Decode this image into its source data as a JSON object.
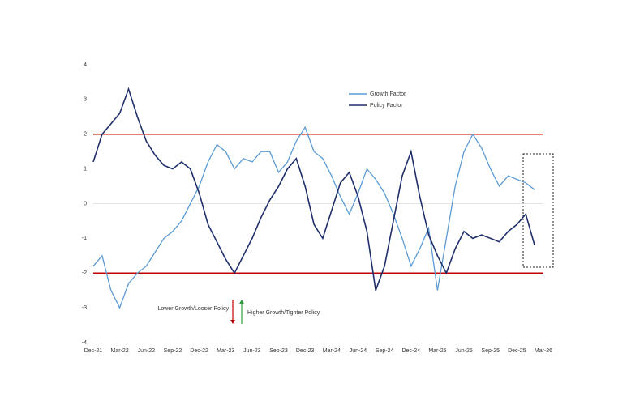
{
  "chart_data": {
    "type": "line",
    "categories": [
      "Dec-21",
      null,
      null,
      "Mar-22",
      null,
      null,
      "Jun-22",
      null,
      null,
      "Sep-22",
      null,
      null,
      "Dec-22",
      null,
      null,
      "Mar-23",
      null,
      null,
      "Jun-23",
      null,
      null,
      "Sep-23",
      null,
      null,
      "Dec-23",
      null,
      null,
      "Mar-24",
      null,
      null,
      "Jun-24",
      null,
      null,
      "Sep-24",
      null,
      null,
      "Dec-24",
      null,
      null,
      "Mar-25",
      null,
      null,
      "Jun-25",
      null,
      null,
      "Sep-25",
      null,
      null,
      "Dec-25",
      null,
      null,
      "Mar-26"
    ],
    "series": [
      {
        "name": "Growth Factor",
        "color": "#5b9bd5",
        "values": [
          -1.8,
          -1.5,
          -2.5,
          -3.0,
          -2.3,
          -2.0,
          -1.8,
          -1.4,
          -1.0,
          -0.8,
          -0.5,
          0.0,
          0.5,
          1.2,
          1.7,
          1.5,
          1.0,
          1.3,
          1.2,
          1.5,
          1.5,
          0.9,
          1.2,
          1.8,
          2.2,
          1.5,
          1.3,
          0.8,
          0.2,
          -0.3,
          0.3,
          1.0,
          0.7,
          0.3,
          -0.3,
          -1.0,
          -1.8,
          -1.3,
          -0.7,
          -2.5,
          -1.0,
          0.5,
          1.5,
          2.0,
          1.6,
          1.0,
          0.5,
          0.8,
          0.7,
          0.6,
          0.4,
          null
        ]
      },
      {
        "name": "Policy Factor",
        "color": "#1f2f6b",
        "values": [
          1.2,
          2.0,
          2.3,
          2.6,
          3.3,
          2.5,
          1.8,
          1.4,
          1.1,
          1.0,
          1.2,
          1.0,
          0.3,
          -0.6,
          -1.1,
          -1.6,
          -2.0,
          -1.5,
          -1.0,
          -0.4,
          0.1,
          0.5,
          1.0,
          1.3,
          0.5,
          -0.6,
          -1.0,
          -0.2,
          0.6,
          0.9,
          0.2,
          -0.8,
          -2.5,
          -1.8,
          -0.5,
          0.8,
          1.5,
          0.2,
          -0.9,
          -1.5,
          -2.0,
          -1.3,
          -0.8,
          -1.0,
          -0.9,
          -1.0,
          -1.1,
          -0.8,
          -0.6,
          -0.3,
          -1.2,
          null
        ]
      }
    ],
    "ylim": [
      -4,
      4
    ],
    "yticks": [
      -4,
      -3,
      -2,
      -1,
      0,
      1,
      2,
      3,
      4
    ],
    "grid": false,
    "reference_lines": [
      {
        "value": 2,
        "color": "#c00000"
      },
      {
        "value": -2,
        "color": "#c00000"
      }
    ],
    "annotations": [
      "Lower Growth/Looser Policy",
      "Higher Growth/Tighter Policy"
    ]
  }
}
